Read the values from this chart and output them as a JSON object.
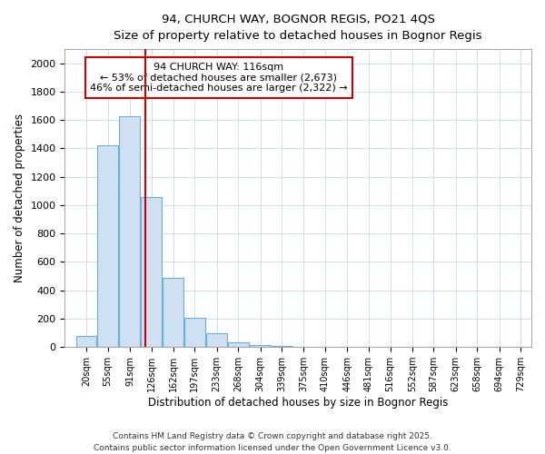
{
  "title_line1": "94, CHURCH WAY, BOGNOR REGIS, PO21 4QS",
  "title_line2": "Size of property relative to detached houses in Bognor Regis",
  "xlabel": "Distribution of detached houses by size in Bognor Regis",
  "ylabel": "Number of detached properties",
  "bar_color": "#cfe0f3",
  "bar_edge_color": "#6baed6",
  "grid_color": "#c8d8e8",
  "background_color": "#ffffff",
  "vline_color": "#cc0000",
  "vline_x": 116,
  "annotation_title": "94 CHURCH WAY: 116sqm",
  "annotation_line1": "← 53% of detached houses are smaller (2,673)",
  "annotation_line2": "46% of semi-detached houses are larger (2,322) →",
  "categories": [
    "20sqm",
    "55sqm",
    "91sqm",
    "126sqm",
    "162sqm",
    "197sqm",
    "233sqm",
    "268sqm",
    "304sqm",
    "339sqm",
    "375sqm",
    "410sqm",
    "446sqm",
    "481sqm",
    "516sqm",
    "552sqm",
    "587sqm",
    "623sqm",
    "658sqm",
    "694sqm",
    "729sqm"
  ],
  "bin_centers": [
    20,
    55,
    91,
    126,
    162,
    197,
    233,
    268,
    304,
    339,
    375,
    410,
    446,
    481,
    516,
    552,
    587,
    623,
    658,
    694,
    729
  ],
  "bin_width": 35,
  "values": [
    80,
    1420,
    1630,
    1060,
    490,
    205,
    100,
    35,
    15,
    5,
    2,
    0,
    0,
    0,
    0,
    0,
    0,
    0,
    0,
    0,
    0
  ],
  "ylim": [
    0,
    2100
  ],
  "yticks": [
    0,
    200,
    400,
    600,
    800,
    1000,
    1200,
    1400,
    1600,
    1800,
    2000
  ],
  "footer_line1": "Contains HM Land Registry data © Crown copyright and database right 2025.",
  "footer_line2": "Contains public sector information licensed under the Open Government Licence v3.0."
}
